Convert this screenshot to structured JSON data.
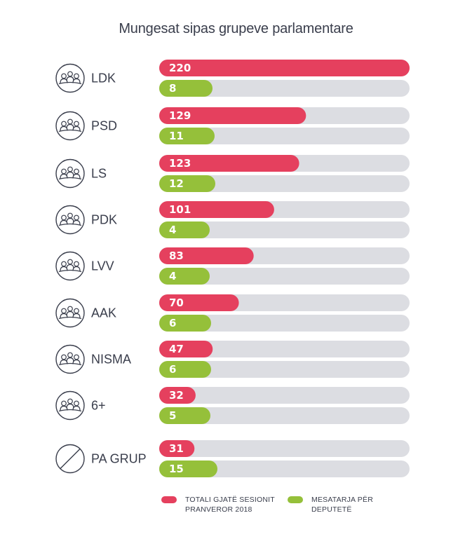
{
  "title": "Mungesat sipas grupeve parlamentare",
  "colors": {
    "total": "#e5405e",
    "average": "#95c03a",
    "track": "#dcdde2",
    "icon": "#3a3e4c"
  },
  "legend": {
    "total_line1": "TOTALI GJATË SESIONIT",
    "total_line2": "PRANVEROR 2018",
    "average_line1": "MESATARJA PËR",
    "average_line2": "DEPUTETË"
  },
  "chart_data": {
    "type": "bar",
    "orientation": "horizontal",
    "title": "Mungesat sipas grupeve parlamentare",
    "categories": [
      "LDK",
      "PSD",
      "LS",
      "PDK",
      "LVV",
      "AAK",
      "NISMA",
      "6+",
      "PA GRUP"
    ],
    "category_icons": [
      "group-icon",
      "group-icon",
      "group-icon",
      "group-icon",
      "group-icon",
      "group-icon",
      "group-icon",
      "group-icon",
      "no-group-icon"
    ],
    "series": [
      {
        "name": "TOTALI GJATË SESIONIT PRANVEROR 2018",
        "color": "#e5405e",
        "values": [
          220,
          129,
          123,
          101,
          83,
          70,
          47,
          32,
          31
        ]
      },
      {
        "name": "MESATARJA PËR DEPUTETË",
        "color": "#95c03a",
        "values": [
          8,
          11,
          12,
          4,
          4,
          6,
          6,
          5,
          15
        ]
      }
    ],
    "legend_position": "bottom",
    "grid": false
  }
}
